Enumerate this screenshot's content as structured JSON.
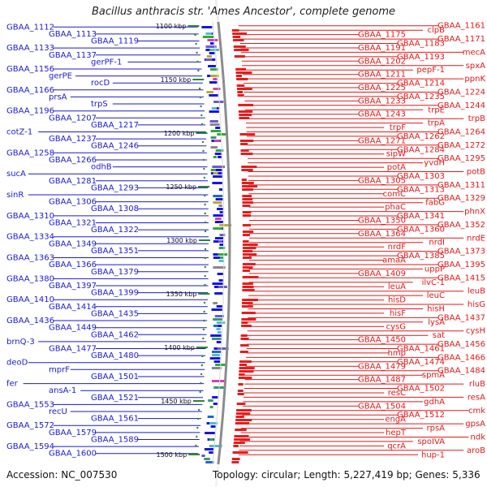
{
  "title": "Bacillus anthracis str. 'Ames Ancestor', complete genome",
  "footer": {
    "accession": "Accession: NC_007530",
    "summary": "Topology: circular; Length: 5,227,419 bp; Genes: 5,336"
  },
  "colors": {
    "left_labels": "#1a1ad0",
    "right_labels": "#e01818",
    "forward_features": "#1515e0",
    "reverse_features": "#e81c1c",
    "backbone": "#8c8c8c",
    "scale_ticks": "#2a8a2a"
  },
  "scale_labels": [
    "1100 kbp",
    "1150 kbp",
    "1200 kbp",
    "1250 kbp",
    "1300 kbp",
    "1350 kbp",
    "1400 kbp",
    "1450 kbp",
    "1500 kbp"
  ],
  "left_labels": [
    "GBAA_1112",
    "GBAA_1113",
    "GBAA_1119",
    "GBAA_1133",
    "GBAA_1137",
    "gerPF-1",
    "GBAA_1156",
    "gerPE",
    "rocD",
    "GBAA_1166",
    "prsA",
    "trpS",
    "GBAA_1196",
    "GBAA_1207",
    "GBAA_1217",
    "cotZ-1",
    "GBAA_1237",
    "GBAA_1246",
    "GBAA_1258",
    "GBAA_1266",
    "odhB",
    "sucA",
    "GBAA_1281",
    "GBAA_1293",
    "sinR",
    "GBAA_1306",
    "GBAA_1308",
    "GBAA_1310",
    "GBAA_1321",
    "GBAA_1322",
    "GBAA_1334",
    "GBAA_1349",
    "GBAA_1351",
    "GBAA_1363",
    "GBAA_1366",
    "GBAA_1379",
    "GBAA_1380",
    "GBAA_1397",
    "GBAA_1399",
    "GBAA_1410",
    "GBAA_1414",
    "GBAA_1435",
    "GBAA_1436",
    "GBAA_1449",
    "GBAA_1462",
    "brnQ-3",
    "GBAA_1477",
    "GBAA_1480",
    "deoD",
    "mprF",
    "GBAA_1501",
    "fer",
    "ansA-1",
    "GBAA_1521",
    "GBAA_1553",
    "recU",
    "GBAA_1561",
    "GBAA_1572",
    "GBAA_1579",
    "GBAA_1589",
    "GBAA_1594",
    "GBAA_1600"
  ],
  "right_labels": [
    "GBAA_1161",
    "clpB",
    "GBAA_1175",
    "GBAA_1171",
    "GBAA_1183",
    "GBAA_1191",
    "mecA",
    "GBAA_1193",
    "GBAA_1202",
    "spxA",
    "pepF-1",
    "GBAA_1211",
    "ppnK",
    "GBAA_1214",
    "GBAA_1225",
    "GBAA_1224",
    "GBAA_1235",
    "GBAA_1233",
    "GBAA_1244",
    "trpE",
    "GBAA_1243",
    "trpB",
    "trpA",
    "trpF",
    "GBAA_1264",
    "GBAA_1262",
    "GBAA_1271",
    "GBAA_1272",
    "GBAA_1284",
    "sipW",
    "GBAA_1295",
    "yvdH",
    "potA",
    "potB",
    "GBAA_1303",
    "GBAA_1305",
    "GBAA_1311",
    "GBAA_1313",
    "comC",
    "GBAA_1329",
    "fabG",
    "phaC",
    "phnX",
    "GBAA_1341",
    "GBAA_1350",
    "GBAA_1352",
    "GBAA_1360",
    "GBAA_1364",
    "nrdE",
    "nrdI",
    "nrdF",
    "GBAA_1373",
    "GBAA_1385",
    "amaA",
    "GBAA_1395",
    "uppP",
    "GBAA_1409",
    "GBAA_1415",
    "ilvC-1",
    "leuA",
    "leuB",
    "leuC",
    "hisD",
    "hisG",
    "hisH",
    "hisF",
    "GBAA_1437",
    "lysA",
    "cysG",
    "cysH",
    "sat",
    "GBAA_1450",
    "GBAA_1456",
    "GBAA_1461",
    "hmp",
    "GBAA_1466",
    "GBAA_1474",
    "GBAA_1479",
    "GBAA_1484",
    "spmA",
    "GBAA_1487",
    "rluB",
    "GBAA_1502",
    "resC",
    "resA",
    "gdhA",
    "GBAA_1504",
    "cmk",
    "GBAA_1512",
    "engA",
    "gpsA",
    "rpsA",
    "hepT",
    "ndk",
    "spoIVA",
    "qcrA",
    "aroB",
    "hup-1"
  ]
}
